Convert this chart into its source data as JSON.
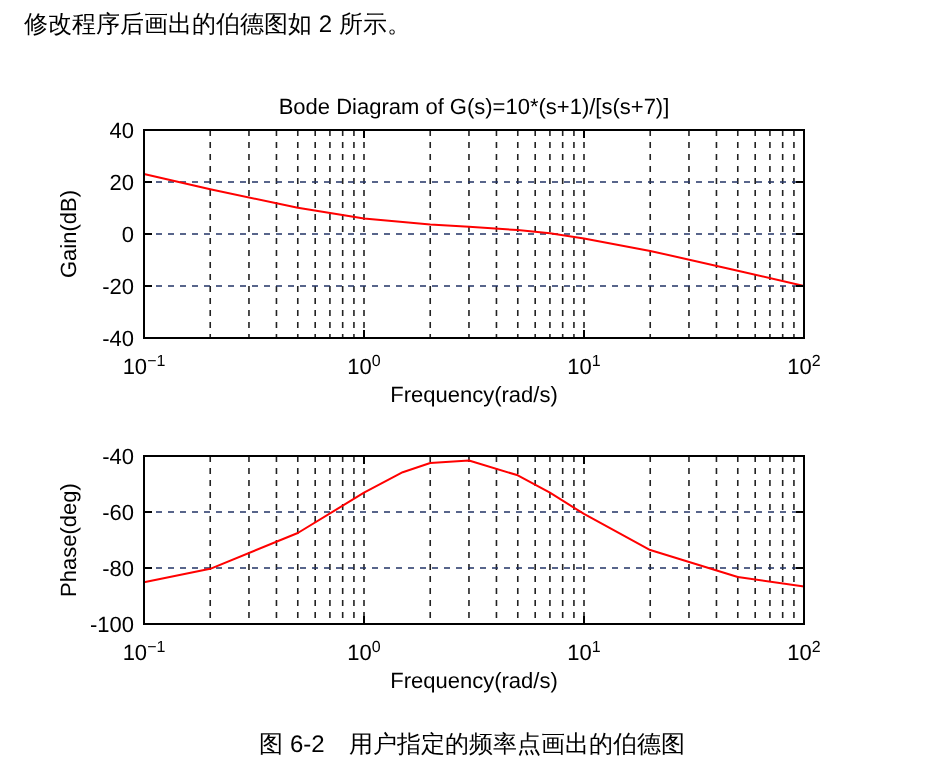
{
  "chart_data": [
    {
      "type": "line",
      "title": "Bode Diagram of G(s)=10*(s+1)/[s(s+7)]",
      "xlabel": "Frequency(rad/s)",
      "ylabel": "Gain(dB)",
      "log": "x",
      "grid": true,
      "x": [
        0.1,
        0.2,
        0.5,
        1,
        1.5,
        2,
        3,
        5,
        7,
        10,
        20,
        50,
        100
      ],
      "series": [
        {
          "color": "#ff0000",
          "values": [
            23.1,
            17.2,
            10.1,
            6.0,
            4.6,
            3.7,
            2.8,
            1.5,
            0.3,
            -1.7,
            -6.5,
            -14.1,
            -20.0
          ]
        }
      ],
      "xlim": [
        0.1,
        100
      ],
      "xticks": [
        {
          "value": 0.1,
          "label": "10$^{−1}$"
        },
        {
          "value": 1,
          "label": "10$^{0}$"
        },
        {
          "value": 10,
          "label": "10$^{1}$"
        },
        {
          "value": 100,
          "label": "10$^{2}$"
        }
      ],
      "ylim": [
        -40,
        40
      ],
      "yticks": [
        -40,
        -20,
        0,
        20,
        40
      ],
      "annotations": [
        "修改程序后画出的伯德图如 2 所示。"
      ]
    },
    {
      "type": "line",
      "xlabel": "Frequency(rad/s)",
      "ylabel": "Phase(deg)",
      "log": "x",
      "grid": true,
      "x": [
        0.1,
        0.2,
        0.5,
        1,
        1.5,
        2,
        3,
        5,
        7,
        10,
        20,
        50,
        100
      ],
      "series": [
        {
          "color": "#ff0000",
          "values": [
            -85.1,
            -80.3,
            -67.5,
            -53.1,
            -45.8,
            -42.5,
            -41.6,
            -46.9,
            -53.1,
            -60.7,
            -73.6,
            -83.2,
            -86.6
          ]
        }
      ],
      "xlim": [
        0.1,
        100
      ],
      "xticks": [
        {
          "value": 0.1,
          "label": "10$^{−1}$"
        },
        {
          "value": 1,
          "label": "10$^{0}$"
        },
        {
          "value": 10,
          "label": "10$^{1}$"
        },
        {
          "value": 100,
          "label": "10$^{2}$"
        }
      ],
      "ylim": [
        -100,
        -40
      ],
      "yticks": [
        -100,
        -80,
        -60,
        -40
      ],
      "annotations": [
        "图 6-2　用户指定的频率点画出的伯德图"
      ]
    }
  ]
}
